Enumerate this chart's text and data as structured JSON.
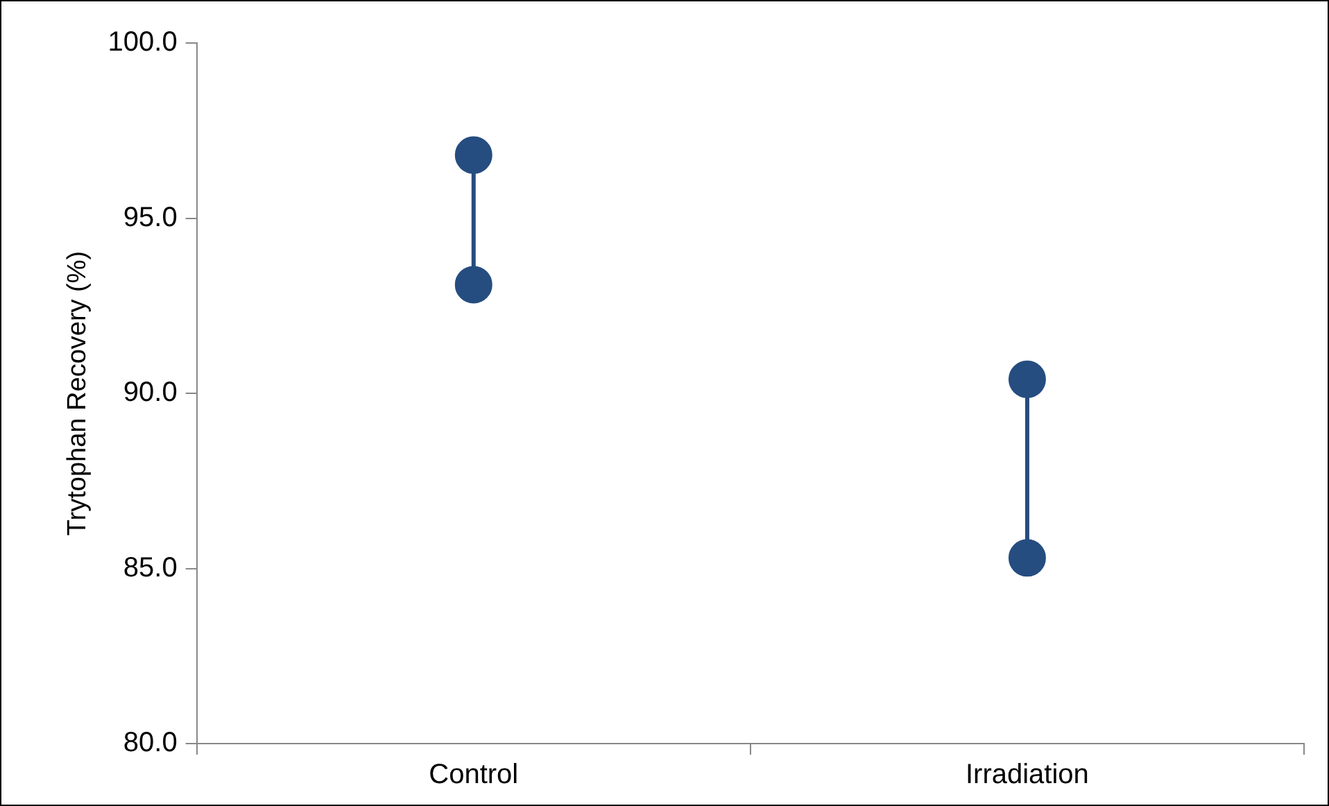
{
  "chart_data": {
    "type": "line",
    "ylabel": "Trytophan Recovery (%)",
    "categories": [
      "Control",
      "Irradiation"
    ],
    "series": [
      {
        "x": [
          "Control",
          "Control"
        ],
        "values": [
          96.8,
          93.1
        ],
        "color": "#254d80"
      },
      {
        "x": [
          "Irradiation",
          "Irradiation"
        ],
        "values": [
          90.4,
          85.3
        ],
        "color": "#254d80"
      }
    ],
    "ylim": [
      80,
      100
    ],
    "yticks": [
      {
        "value": 80,
        "label": "80.0"
      },
      {
        "value": 85,
        "label": "85.0"
      },
      {
        "value": 90,
        "label": "90.0"
      },
      {
        "value": 95,
        "label": "95.0"
      },
      {
        "value": 100,
        "label": "100.0"
      }
    ],
    "grid": false,
    "legend": false,
    "marker": "circle",
    "line_style": "solid"
  }
}
